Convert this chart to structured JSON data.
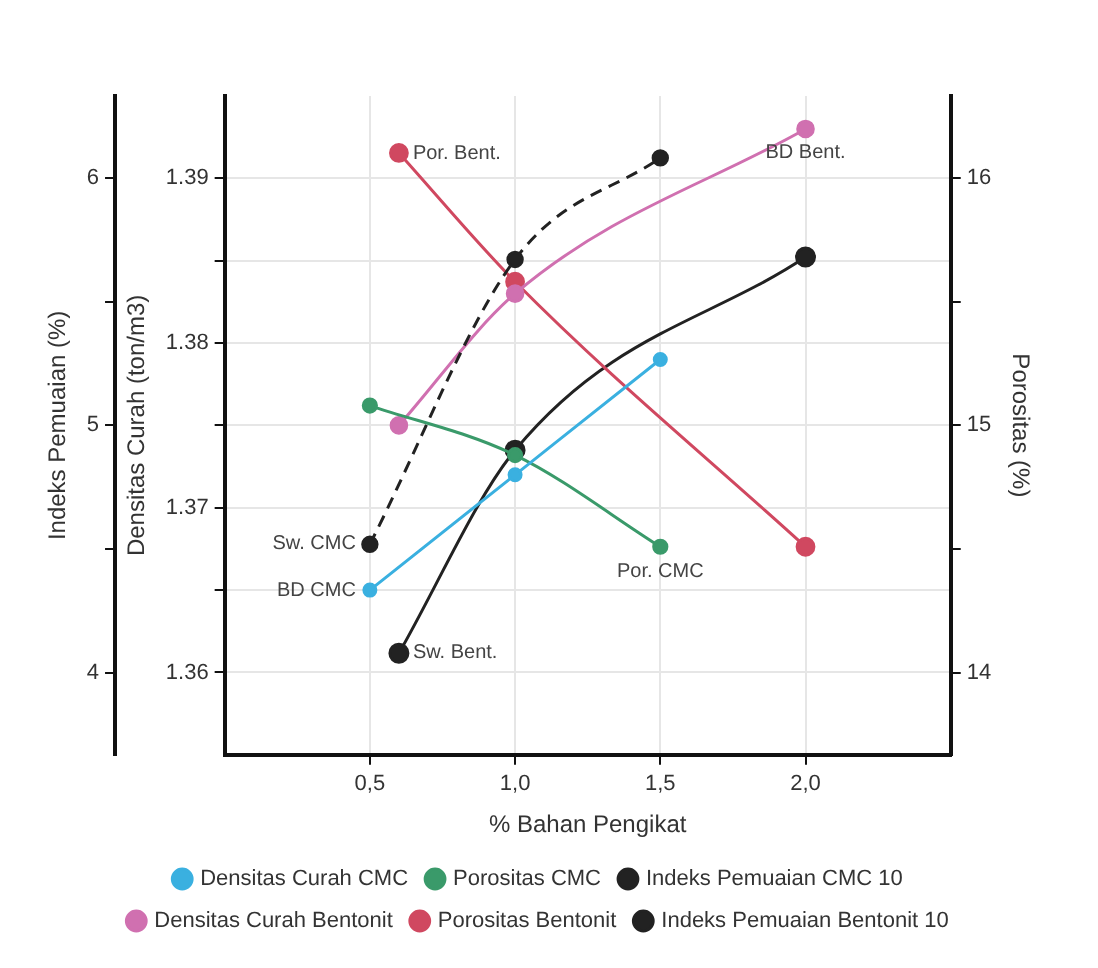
{
  "chart_data": {
    "type": "line",
    "xlabel": "% Bahan Pengikat",
    "ylabel": "Densitas Curah (ton/m3)",
    "y2label": "Porositas (%)",
    "y3label": "Indeks Pemuaian (%)",
    "xlim": [
      0,
      2.5
    ],
    "xticks": [
      {
        "value": 0.5,
        "label": "0,5"
      },
      {
        "value": 1.0,
        "label": "1,0"
      },
      {
        "value": 1.5,
        "label": "1,5"
      },
      {
        "value": 2.0,
        "label": "2,0"
      }
    ],
    "ylim": [
      1.355,
      1.395
    ],
    "yticks": [
      1.36,
      {
        "value": 1.365,
        "label": null
      },
      1.37,
      {
        "value": 1.375,
        "label": null
      },
      1.38,
      {
        "value": 1.385,
        "label": null
      },
      1.39
    ],
    "y2lim": [
      13.67,
      16.33
    ],
    "y2ticks": [
      14,
      {
        "value": 14.5,
        "label": null
      },
      15,
      {
        "value": 15.5,
        "label": null
      },
      16
    ],
    "y3lim": [
      3.67,
      6.33
    ],
    "y3ticks": [
      4,
      {
        "value": 4.5,
        "label": null
      },
      5,
      {
        "value": 5.5,
        "label": null
      },
      6
    ],
    "grid": true,
    "legend": "bottom",
    "marker": "circle",
    "series": [
      {
        "name": "Densitas Curah CMC",
        "color": "#3ab0e0",
        "x": [
          0.5,
          1.0,
          1.5
        ],
        "values": [
          1.365,
          1.372,
          1.379
        ]
      },
      {
        "name": "Porositas CMC",
        "color": "#3a9a6a",
        "axis": "y2",
        "x": [
          0.5,
          1.0,
          1.5
        ],
        "values": [
          15.08,
          14.88,
          14.51
        ]
      },
      {
        "name": "Indeks Pemuaian CMC 10",
        "color": "#222222",
        "axis": "y3",
        "line_style": "dashed",
        "x": [
          0.5,
          1.0,
          1.5
        ],
        "values": [
          4.52,
          5.67,
          6.08
        ]
      },
      {
        "name": "Densitas Curah Bentonit",
        "color": "#d070b0",
        "x": [
          0.6,
          1.0,
          2.0
        ],
        "values": [
          1.375,
          1.383,
          1.393
        ]
      },
      {
        "name": "Porositas Bentonit",
        "color": "#d04860",
        "axis": "y2",
        "x": [
          0.6,
          1.0,
          2.0
        ],
        "values": [
          16.1,
          15.58,
          14.51
        ]
      },
      {
        "name": "Indeks Pemuaian Bentonit 10",
        "color": "#222222",
        "axis": "y3",
        "x": [
          0.6,
          1.0,
          2.0
        ],
        "values": [
          4.08,
          4.9,
          5.68
        ]
      }
    ],
    "annotations": [
      {
        "text": "Por. Bent.",
        "x": 0.6,
        "y": 1.3915
      },
      {
        "text": "BD Bent.",
        "x": 2.0,
        "y": 1.393
      },
      {
        "text": "Sw. CMC",
        "x": 0.5,
        "y": 1.3678
      },
      {
        "text": "BD CMC",
        "x": 0.5,
        "y": 1.365
      },
      {
        "text": "Sw. Bent.",
        "x": 0.6,
        "y": 1.3612
      },
      {
        "text": "Por. CMC",
        "x": 1.5,
        "y": 1.3676
      }
    ]
  }
}
